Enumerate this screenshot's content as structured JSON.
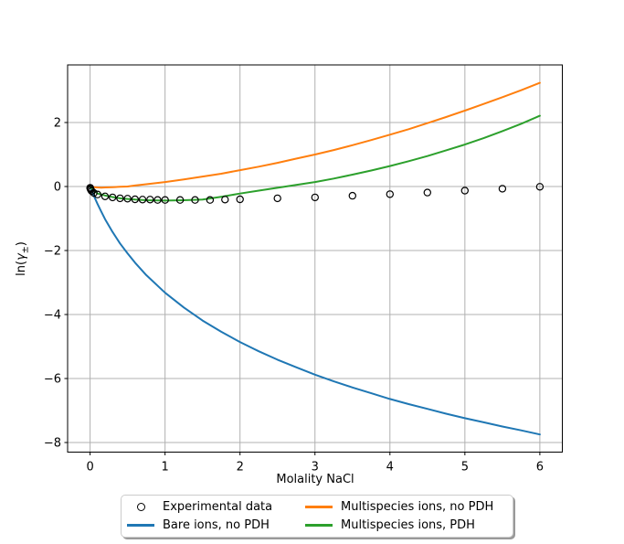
{
  "figure": {
    "background": "#ffffff",
    "title": "",
    "grid_color": "#b0b0b0",
    "spine_color": "#000000",
    "legend_border_color": "#cccccc",
    "legend_shadow_color": "#999999"
  },
  "chart_data": {
    "type": "line",
    "title": "",
    "xlabel": "Molality NaCl",
    "ylabel": "ln(γ±)",
    "ylabel_parts": [
      "ln(",
      "γ",
      "±",
      ")"
    ],
    "xlim": [
      -0.3,
      6.3
    ],
    "ylim": [
      -8.3,
      3.8
    ],
    "grid": true,
    "legend_position": "lower center outside, 2 columns, with shadow",
    "xticks": {
      "values": [
        0,
        1,
        2,
        3,
        4,
        5,
        6
      ],
      "labels": [
        "0",
        "1",
        "2",
        "3",
        "4",
        "5",
        "6"
      ]
    },
    "yticks": {
      "values": [
        -8,
        -6,
        -4,
        -2,
        0,
        2
      ],
      "labels": [
        "−8",
        "−6",
        "−4",
        "−2",
        "0",
        "2"
      ]
    },
    "series": [
      {
        "name": "Experimental data",
        "type": "scatter",
        "marker": "open-circle",
        "color": "#000000",
        "x": [
          0.001,
          0.002,
          0.005,
          0.01,
          0.02,
          0.05,
          0.1,
          0.2,
          0.3,
          0.4,
          0.5,
          0.6,
          0.7,
          0.8,
          0.9,
          1.0,
          1.2,
          1.4,
          1.6,
          1.8,
          2.0,
          2.5,
          3.0,
          3.5,
          4.0,
          4.5,
          5.0,
          5.5,
          6.0
        ],
        "y": [
          -0.04,
          -0.05,
          -0.07,
          -0.1,
          -0.14,
          -0.2,
          -0.25,
          -0.31,
          -0.34,
          -0.37,
          -0.38,
          -0.4,
          -0.41,
          -0.41,
          -0.42,
          -0.42,
          -0.42,
          -0.42,
          -0.42,
          -0.41,
          -0.4,
          -0.37,
          -0.34,
          -0.29,
          -0.24,
          -0.19,
          -0.13,
          -0.07,
          -0.01
        ]
      },
      {
        "name": "Bare ions, no PDH",
        "type": "line",
        "color": "#1f77b4",
        "x": [
          0,
          0.02,
          0.05,
          0.1,
          0.15,
          0.2,
          0.3,
          0.4,
          0.5,
          0.6,
          0.75,
          1,
          1.25,
          1.5,
          1.75,
          2,
          2.25,
          2.5,
          2.75,
          3,
          3.25,
          3.5,
          3.75,
          4,
          4.25,
          4.5,
          4.75,
          5,
          5.25,
          5.5,
          5.75,
          6
        ],
        "y": [
          0,
          -0.12,
          -0.29,
          -0.55,
          -0.79,
          -1.02,
          -1.42,
          -1.78,
          -2.09,
          -2.38,
          -2.77,
          -3.32,
          -3.78,
          -4.19,
          -4.54,
          -4.86,
          -5.15,
          -5.41,
          -5.65,
          -5.88,
          -6.09,
          -6.28,
          -6.46,
          -6.64,
          -6.8,
          -6.95,
          -7.1,
          -7.24,
          -7.37,
          -7.5,
          -7.62,
          -7.75
        ]
      },
      {
        "name": "Multispecies ions, no PDH",
        "type": "line",
        "color": "#ff7f0e",
        "x": [
          0,
          0.02,
          0.05,
          0.1,
          0.15,
          0.2,
          0.3,
          0.4,
          0.5,
          0.6,
          0.75,
          1,
          1.25,
          1.5,
          1.75,
          2,
          2.25,
          2.5,
          2.75,
          3,
          3.25,
          3.5,
          3.75,
          4,
          4.25,
          4.5,
          4.75,
          5,
          5.25,
          5.5,
          5.75,
          6
        ],
        "y": [
          0,
          -0.01,
          -0.02,
          -0.03,
          -0.035,
          -0.03,
          -0.02,
          -0.01,
          0.0,
          0.03,
          0.07,
          0.14,
          0.22,
          0.31,
          0.4,
          0.51,
          0.62,
          0.74,
          0.87,
          1.0,
          1.14,
          1.29,
          1.45,
          1.62,
          1.79,
          1.98,
          2.17,
          2.37,
          2.58,
          2.79,
          3.01,
          3.24
        ]
      },
      {
        "name": "Multispecies ions, PDH",
        "type": "line",
        "color": "#2ca02c",
        "x": [
          0,
          0.02,
          0.05,
          0.1,
          0.15,
          0.2,
          0.3,
          0.4,
          0.5,
          0.6,
          0.75,
          1,
          1.25,
          1.5,
          1.75,
          2,
          2.25,
          2.5,
          2.75,
          3,
          3.25,
          3.5,
          3.75,
          4,
          4.25,
          4.5,
          4.75,
          5,
          5.25,
          5.5,
          5.75,
          6
        ],
        "y": [
          0,
          -0.06,
          -0.12,
          -0.22,
          -0.25,
          -0.28,
          -0.33,
          -0.37,
          -0.39,
          -0.41,
          -0.43,
          -0.44,
          -0.43,
          -0.41,
          -0.32,
          -0.22,
          -0.13,
          -0.04,
          0.05,
          0.14,
          0.25,
          0.37,
          0.5,
          0.64,
          0.79,
          0.95,
          1.13,
          1.31,
          1.51,
          1.73,
          1.96,
          2.21
        ]
      }
    ]
  },
  "legend": {
    "items": [
      "Experimental data",
      "Bare ions, no PDH",
      "Multispecies ions, no PDH",
      "Multispecies ions, PDH"
    ]
  }
}
